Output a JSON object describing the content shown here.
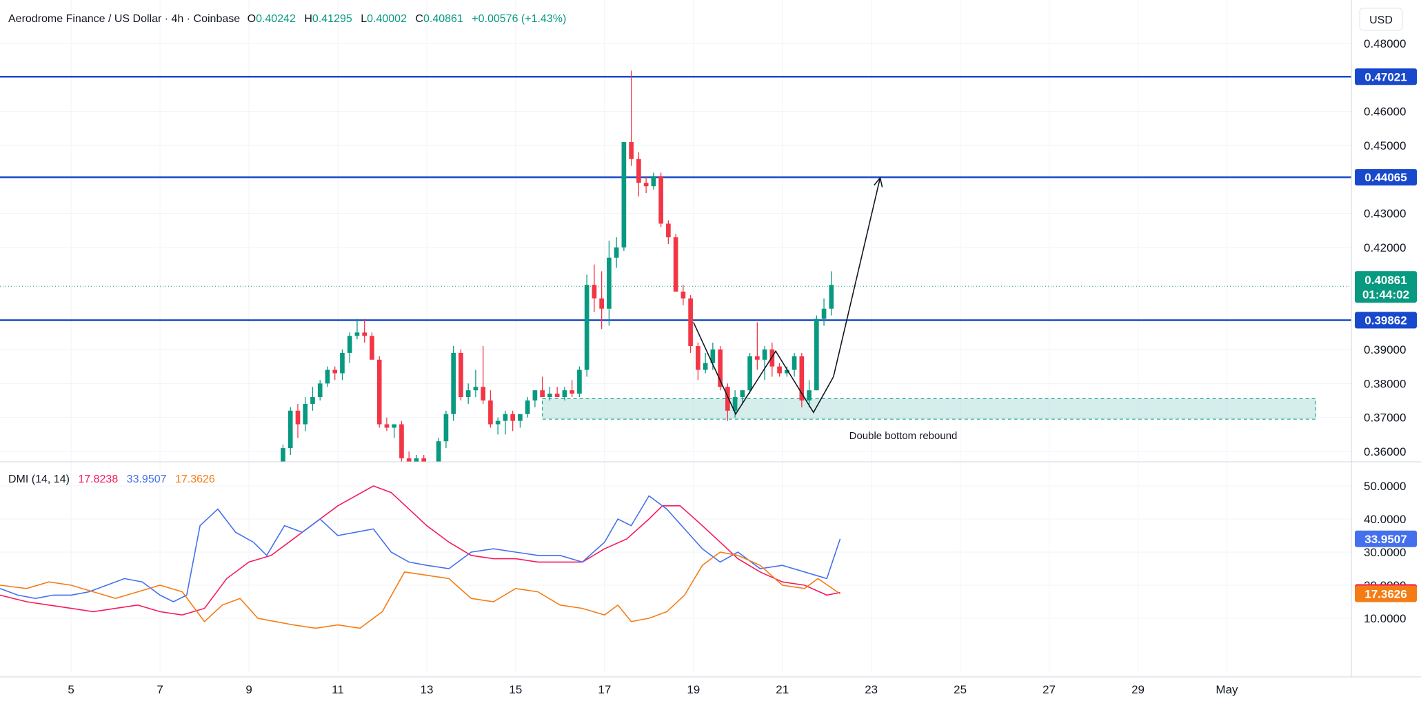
{
  "header": {
    "symbol": "Aerodrome Finance / US Dollar · 4h · Coinbase",
    "o_label": "O",
    "o_value": "0.40242",
    "h_label": "H",
    "h_value": "0.41295",
    "l_label": "L",
    "l_value": "0.40002",
    "c_label": "C",
    "c_value": "0.40861",
    "change": "+0.00576 (+1.43%)",
    "currency": "USD"
  },
  "colors": {
    "up": "#089981",
    "down": "#f23645",
    "level": "#1848cc",
    "plus_di": "#f7195c",
    "minus_di": "#4470ee",
    "adx": "#f57c14",
    "zone": "#b2dfdb"
  },
  "chart_data": [
    {
      "type": "candlestick",
      "ylim": [
        0.356,
        0.485
      ],
      "y_ticks": [
        "0.48000",
        "0.46000",
        "0.45000",
        "0.43000",
        "0.42000",
        "0.39000",
        "0.38000",
        "0.37000",
        "0.36000"
      ],
      "x_range": [
        3.4,
        33.8
      ],
      "x_ticks": [
        {
          "x": 5,
          "label": "5"
        },
        {
          "x": 7,
          "label": "7"
        },
        {
          "x": 9,
          "label": "9"
        },
        {
          "x": 11,
          "label": "11"
        },
        {
          "x": 13,
          "label": "13"
        },
        {
          "x": 15,
          "label": "15"
        },
        {
          "x": 17,
          "label": "17"
        },
        {
          "x": 19,
          "label": "19"
        },
        {
          "x": 21,
          "label": "21"
        },
        {
          "x": 23,
          "label": "23"
        },
        {
          "x": 25,
          "label": "25"
        },
        {
          "x": 27,
          "label": "27"
        },
        {
          "x": 29,
          "label": "29"
        },
        {
          "x": 31,
          "label": "May"
        }
      ],
      "candles_start_x": 9.6,
      "candle_step": 0.1667,
      "candles": [
        [
          0.35,
          0.356,
          0.348,
          0.355
        ],
        [
          0.355,
          0.362,
          0.354,
          0.361
        ],
        [
          0.361,
          0.373,
          0.359,
          0.372
        ],
        [
          0.372,
          0.374,
          0.364,
          0.368
        ],
        [
          0.368,
          0.376,
          0.366,
          0.374
        ],
        [
          0.374,
          0.379,
          0.372,
          0.376
        ],
        [
          0.376,
          0.381,
          0.375,
          0.38
        ],
        [
          0.38,
          0.385,
          0.379,
          0.384
        ],
        [
          0.384,
          0.385,
          0.381,
          0.383
        ],
        [
          0.383,
          0.39,
          0.381,
          0.389
        ],
        [
          0.389,
          0.395,
          0.386,
          0.394
        ],
        [
          0.394,
          0.399,
          0.393,
          0.395
        ],
        [
          0.395,
          0.399,
          0.392,
          0.394
        ],
        [
          0.394,
          0.395,
          0.387,
          0.387
        ],
        [
          0.387,
          0.388,
          0.367,
          0.368
        ],
        [
          0.368,
          0.37,
          0.366,
          0.367
        ],
        [
          0.367,
          0.368,
          0.364,
          0.368
        ],
        [
          0.368,
          0.369,
          0.357,
          0.358
        ],
        [
          0.358,
          0.36,
          0.35,
          0.352
        ],
        [
          0.352,
          0.359,
          0.35,
          0.358
        ],
        [
          0.358,
          0.359,
          0.352,
          0.354
        ],
        [
          0.354,
          0.357,
          0.353,
          0.356
        ],
        [
          0.356,
          0.364,
          0.355,
          0.363
        ],
        [
          0.363,
          0.372,
          0.361,
          0.371
        ],
        [
          0.371,
          0.391,
          0.369,
          0.389
        ],
        [
          0.389,
          0.39,
          0.375,
          0.376
        ],
        [
          0.376,
          0.38,
          0.374,
          0.378
        ],
        [
          0.378,
          0.384,
          0.376,
          0.379
        ],
        [
          0.379,
          0.391,
          0.374,
          0.375
        ],
        [
          0.375,
          0.378,
          0.367,
          0.368
        ],
        [
          0.368,
          0.37,
          0.365,
          0.369
        ],
        [
          0.369,
          0.372,
          0.365,
          0.371
        ],
        [
          0.371,
          0.372,
          0.366,
          0.369
        ],
        [
          0.369,
          0.371,
          0.367,
          0.371
        ],
        [
          0.371,
          0.376,
          0.37,
          0.375
        ],
        [
          0.375,
          0.378,
          0.373,
          0.378
        ],
        [
          0.378,
          0.382,
          0.376,
          0.376
        ],
        [
          0.376,
          0.379,
          0.375,
          0.377
        ],
        [
          0.377,
          0.379,
          0.376,
          0.376
        ],
        [
          0.376,
          0.379,
          0.375,
          0.378
        ],
        [
          0.378,
          0.381,
          0.376,
          0.377
        ],
        [
          0.377,
          0.385,
          0.376,
          0.384
        ],
        [
          0.384,
          0.412,
          0.382,
          0.409
        ],
        [
          0.409,
          0.415,
          0.401,
          0.405
        ],
        [
          0.405,
          0.413,
          0.396,
          0.402
        ],
        [
          0.402,
          0.422,
          0.397,
          0.417
        ],
        [
          0.417,
          0.423,
          0.414,
          0.42
        ],
        [
          0.42,
          0.451,
          0.419,
          0.451
        ],
        [
          0.451,
          0.472,
          0.444,
          0.446
        ],
        [
          0.446,
          0.448,
          0.435,
          0.439
        ],
        [
          0.439,
          0.441,
          0.436,
          0.438
        ],
        [
          0.438,
          0.442,
          0.437,
          0.441
        ],
        [
          0.441,
          0.442,
          0.426,
          0.427
        ],
        [
          0.427,
          0.428,
          0.421,
          0.423
        ],
        [
          0.423,
          0.424,
          0.407,
          0.407
        ],
        [
          0.407,
          0.409,
          0.403,
          0.405
        ],
        [
          0.405,
          0.406,
          0.389,
          0.391
        ],
        [
          0.391,
          0.392,
          0.381,
          0.384
        ],
        [
          0.384,
          0.389,
          0.383,
          0.386
        ],
        [
          0.386,
          0.392,
          0.384,
          0.39
        ],
        [
          0.39,
          0.391,
          0.378,
          0.379
        ],
        [
          0.379,
          0.38,
          0.369,
          0.372
        ],
        [
          0.372,
          0.378,
          0.37,
          0.376
        ],
        [
          0.376,
          0.378,
          0.374,
          0.378
        ],
        [
          0.378,
          0.389,
          0.377,
          0.388
        ],
        [
          0.388,
          0.398,
          0.384,
          0.387
        ],
        [
          0.387,
          0.391,
          0.381,
          0.39
        ],
        [
          0.39,
          0.392,
          0.382,
          0.385
        ],
        [
          0.385,
          0.386,
          0.382,
          0.383
        ],
        [
          0.383,
          0.385,
          0.382,
          0.384
        ],
        [
          0.384,
          0.389,
          0.382,
          0.388
        ],
        [
          0.388,
          0.389,
          0.373,
          0.375
        ],
        [
          0.375,
          0.381,
          0.373,
          0.378
        ],
        [
          0.378,
          0.4,
          0.378,
          0.399
        ],
        [
          0.399,
          0.405,
          0.397,
          0.402
        ],
        [
          0.402,
          0.413,
          0.4,
          0.409
        ]
      ],
      "levels": [
        {
          "price": 0.47021,
          "label": "0.47021"
        },
        {
          "price": 0.44065,
          "label": "0.44065"
        },
        {
          "price": 0.39862,
          "label": "0.39862"
        }
      ],
      "last_price": {
        "price": 0.40861,
        "label": "0.40861",
        "countdown": "01:44:02"
      },
      "zone": {
        "x0": 15.6,
        "x1": 33.0,
        "y_top": 0.3755,
        "y_bottom": 0.3695
      },
      "pattern_path": [
        [
          19.0,
          0.398
        ],
        [
          19.95,
          0.371
        ],
        [
          20.85,
          0.3895
        ],
        [
          21.7,
          0.3715
        ],
        [
          22.15,
          0.382
        ]
      ],
      "arrow": {
        "from": [
          22.15,
          0.382
        ],
        "to": [
          23.2,
          0.4405
        ]
      },
      "annotation": "Double bottom rebound"
    },
    {
      "type": "line",
      "title": "DMI (14, 14)",
      "ylim": [
        3,
        54
      ],
      "y_ticks": [
        "50.0000",
        "40.0000",
        "30.0000",
        "20.0000",
        "10.0000"
      ],
      "series": [
        {
          "name": "",
          "value_label": "17.8238",
          "key": "plus_di",
          "points": [
            [
              3.4,
              17
            ],
            [
              4.0,
              15
            ],
            [
              4.5,
              14
            ],
            [
              5.0,
              13
            ],
            [
              5.5,
              12
            ],
            [
              6.0,
              13
            ],
            [
              6.5,
              14
            ],
            [
              7.0,
              12
            ],
            [
              7.5,
              11
            ],
            [
              8.0,
              13
            ],
            [
              8.5,
              22
            ],
            [
              9.0,
              27
            ],
            [
              9.5,
              29
            ],
            [
              10.0,
              34
            ],
            [
              10.5,
              39
            ],
            [
              11.0,
              44
            ],
            [
              11.4,
              47
            ],
            [
              11.8,
              50
            ],
            [
              12.2,
              48
            ],
            [
              12.6,
              43
            ],
            [
              13.0,
              38
            ],
            [
              13.5,
              33
            ],
            [
              14.0,
              29
            ],
            [
              14.5,
              28
            ],
            [
              15.0,
              28
            ],
            [
              15.5,
              27
            ],
            [
              16.0,
              27
            ],
            [
              16.5,
              27
            ],
            [
              17.0,
              31
            ],
            [
              17.5,
              34
            ],
            [
              18.0,
              40
            ],
            [
              18.3,
              44
            ],
            [
              18.7,
              44
            ],
            [
              19.2,
              38
            ],
            [
              19.6,
              33
            ],
            [
              20.0,
              28
            ],
            [
              20.5,
              24
            ],
            [
              21.0,
              21
            ],
            [
              21.5,
              20
            ],
            [
              22.0,
              17
            ],
            [
              22.3,
              17.8
            ]
          ]
        },
        {
          "name": "",
          "value_label": "33.9507",
          "key": "minus_di",
          "points": [
            [
              3.4,
              19
            ],
            [
              3.8,
              17
            ],
            [
              4.2,
              16
            ],
            [
              4.6,
              17
            ],
            [
              5.0,
              17
            ],
            [
              5.4,
              18
            ],
            [
              5.8,
              20
            ],
            [
              6.2,
              22
            ],
            [
              6.6,
              21
            ],
            [
              7.0,
              17
            ],
            [
              7.3,
              15
            ],
            [
              7.6,
              17
            ],
            [
              7.9,
              38
            ],
            [
              8.3,
              43
            ],
            [
              8.7,
              36
            ],
            [
              9.1,
              33
            ],
            [
              9.4,
              29
            ],
            [
              9.8,
              38
            ],
            [
              10.2,
              36
            ],
            [
              10.6,
              40
            ],
            [
              11.0,
              35
            ],
            [
              11.4,
              36
            ],
            [
              11.8,
              37
            ],
            [
              12.2,
              30
            ],
            [
              12.6,
              27
            ],
            [
              13.0,
              26
            ],
            [
              13.5,
              25
            ],
            [
              14.0,
              30
            ],
            [
              14.5,
              31
            ],
            [
              15.0,
              30
            ],
            [
              15.5,
              29
            ],
            [
              16.0,
              29
            ],
            [
              16.5,
              27
            ],
            [
              17.0,
              33
            ],
            [
              17.3,
              40
            ],
            [
              17.6,
              38
            ],
            [
              18.0,
              47
            ],
            [
              18.4,
              43
            ],
            [
              18.8,
              37
            ],
            [
              19.2,
              31
            ],
            [
              19.6,
              27
            ],
            [
              20.0,
              30
            ],
            [
              20.5,
              25
            ],
            [
              21.0,
              26
            ],
            [
              21.5,
              24
            ],
            [
              22.0,
              22
            ],
            [
              22.3,
              34
            ]
          ]
        },
        {
          "name": "",
          "value_label": "17.3626",
          "key": "adx",
          "points": [
            [
              3.4,
              20
            ],
            [
              4.0,
              19
            ],
            [
              4.5,
              21
            ],
            [
              5.0,
              20
            ],
            [
              5.5,
              18
            ],
            [
              6.0,
              16
            ],
            [
              6.5,
              18
            ],
            [
              7.0,
              20
            ],
            [
              7.5,
              18
            ],
            [
              8.0,
              9
            ],
            [
              8.4,
              14
            ],
            [
              8.8,
              16
            ],
            [
              9.2,
              10
            ],
            [
              9.6,
              9
            ],
            [
              10.0,
              8
            ],
            [
              10.5,
              7
            ],
            [
              11.0,
              8
            ],
            [
              11.5,
              7
            ],
            [
              12.0,
              12
            ],
            [
              12.5,
              24
            ],
            [
              13.0,
              23
            ],
            [
              13.5,
              22
            ],
            [
              14.0,
              16
            ],
            [
              14.5,
              15
            ],
            [
              15.0,
              19
            ],
            [
              15.5,
              18
            ],
            [
              16.0,
              14
            ],
            [
              16.5,
              13
            ],
            [
              17.0,
              11
            ],
            [
              17.3,
              14
            ],
            [
              17.6,
              9
            ],
            [
              18.0,
              10
            ],
            [
              18.4,
              12
            ],
            [
              18.8,
              17
            ],
            [
              19.2,
              26
            ],
            [
              19.6,
              30
            ],
            [
              20.0,
              29
            ],
            [
              20.5,
              26
            ],
            [
              21.0,
              20
            ],
            [
              21.5,
              19
            ],
            [
              21.8,
              22
            ],
            [
              22.3,
              17.4
            ]
          ]
        }
      ]
    }
  ]
}
